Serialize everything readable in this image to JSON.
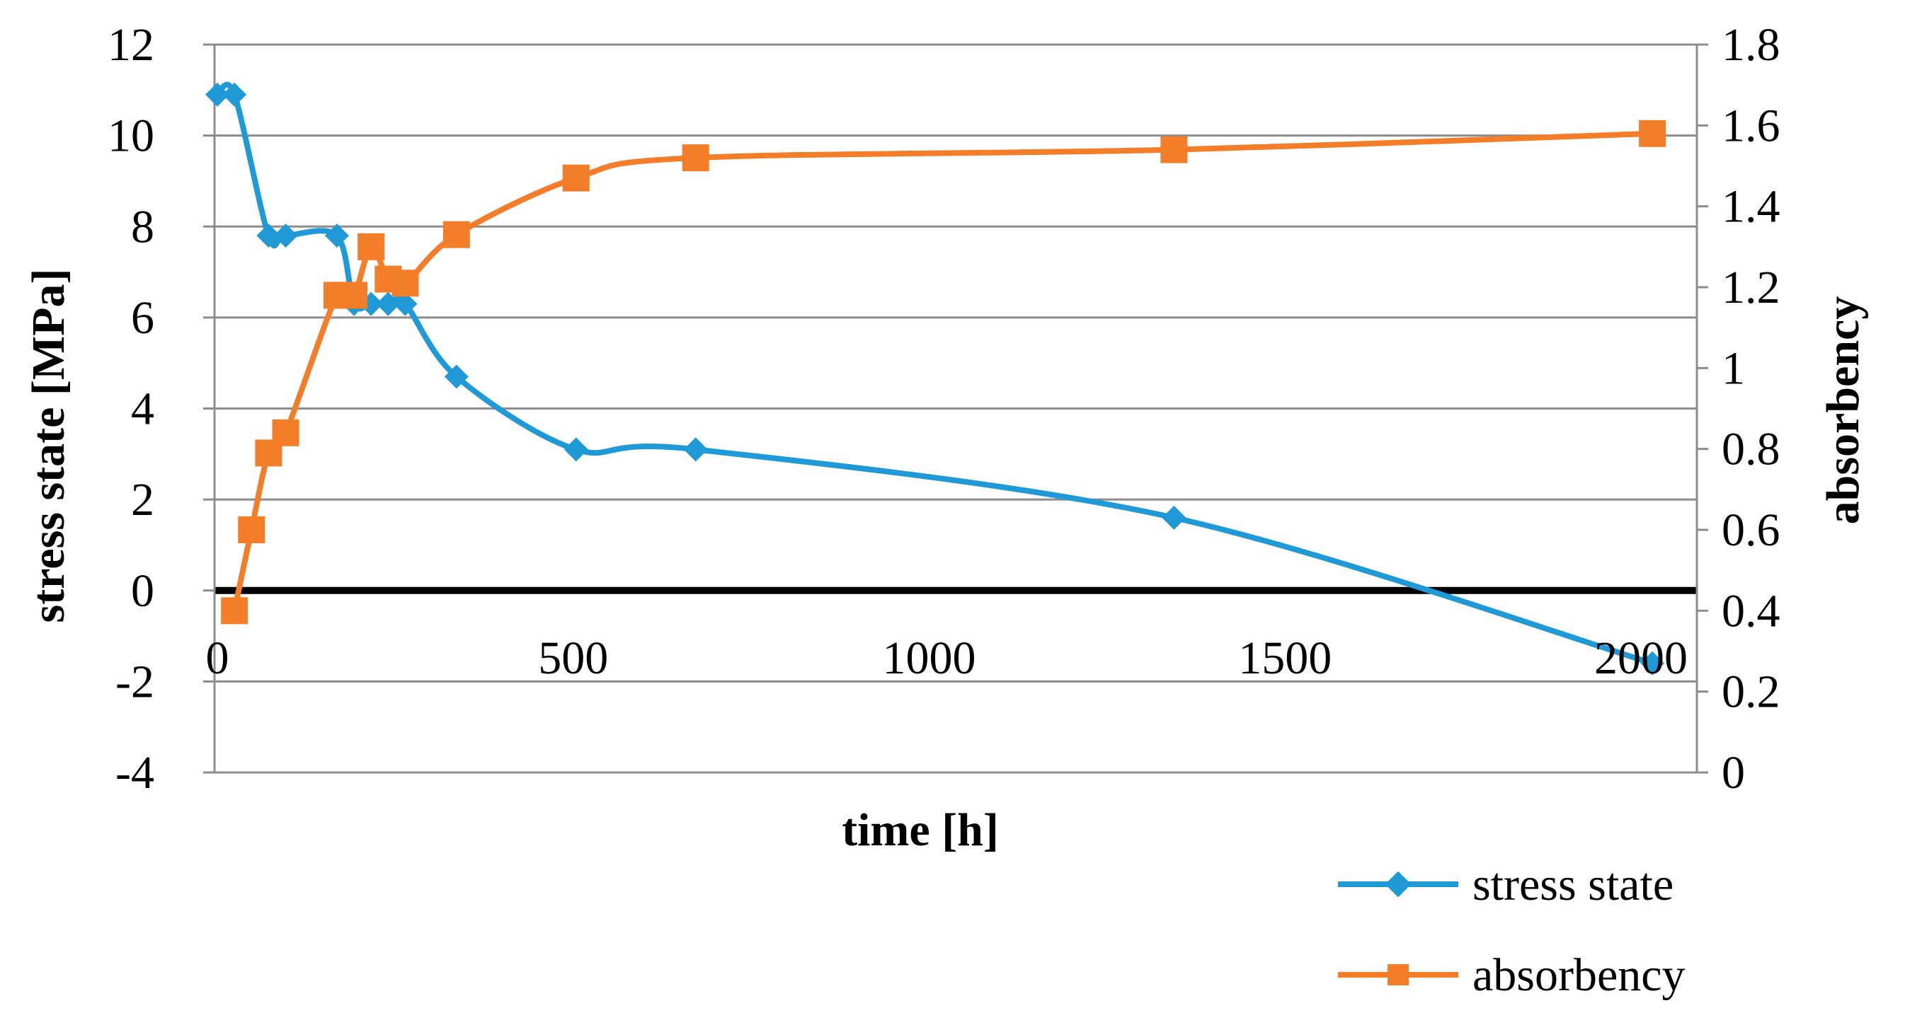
{
  "chart_data": {
    "type": "line",
    "title": "",
    "xlabel": "time [h]",
    "ylabel_left": "stress state [MPa]",
    "ylabel_right": "absorbency",
    "xlim": [
      0,
      2100
    ],
    "ylim_left": [
      -4,
      12
    ],
    "ylim_right": [
      0,
      1.8
    ],
    "x_ticks": [
      "0",
      "500",
      "1000",
      "1500",
      "2000"
    ],
    "y_ticks_left": [
      "-4",
      "-2",
      "0",
      "2",
      "4",
      "6",
      "8",
      "10",
      "12"
    ],
    "y_ticks_right": [
      "0",
      "0.2",
      "0.4",
      "0.6",
      "0.8",
      "1",
      "1.2",
      "1.4",
      "1.6",
      "1.8"
    ],
    "grid": true,
    "legend_position": "bottom-right",
    "series": [
      {
        "name": "stress state",
        "axis": "left",
        "color": "#1f9ad6",
        "marker": "diamond",
        "x": [
          0,
          24,
          72,
          96,
          168,
          192,
          216,
          240,
          264,
          336,
          504,
          672,
          1344,
          2016
        ],
        "y": [
          10.9,
          10.9,
          7.8,
          7.8,
          7.8,
          6.3,
          6.3,
          6.3,
          6.3,
          4.7,
          3.1,
          3.1,
          1.6,
          -1.6
        ]
      },
      {
        "name": "absorbency",
        "axis": "right",
        "color": "#f47d2a",
        "marker": "square",
        "x": [
          24,
          48,
          72,
          96,
          168,
          192,
          216,
          240,
          264,
          336,
          504,
          672,
          1344,
          2016
        ],
        "y": [
          0.4,
          0.6,
          0.79,
          0.84,
          1.18,
          1.18,
          1.3,
          1.22,
          1.21,
          1.33,
          1.47,
          1.52,
          1.54,
          1.58
        ]
      }
    ]
  }
}
